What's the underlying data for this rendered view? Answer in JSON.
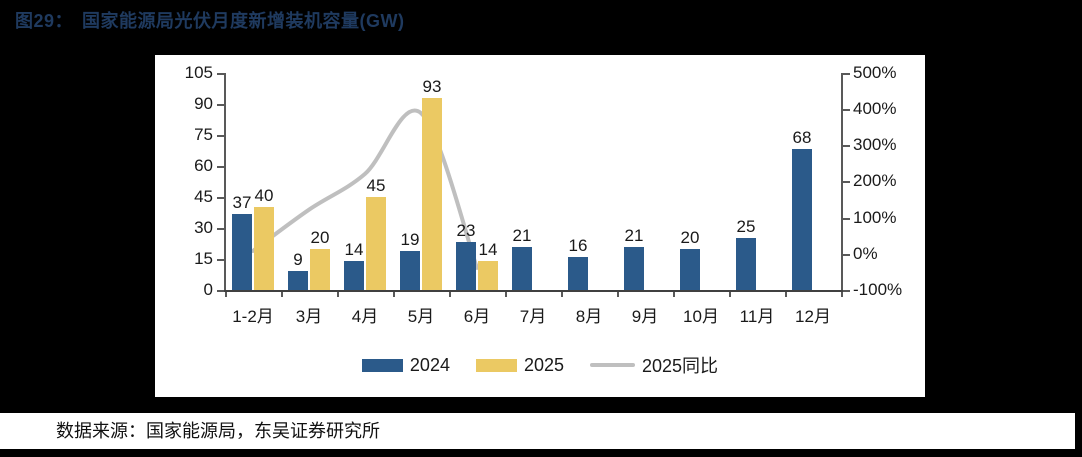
{
  "figure": {
    "title_prefix": "图29：",
    "title_text": "国家能源局光伏月度新增装机容量(GW)",
    "source": "数据来源：国家能源局，东吴证券研究所"
  },
  "colors": {
    "background": "#000000",
    "panel": "#ffffff",
    "title": "#1F3A5F",
    "bar_2024": "#2B5A8A",
    "bar_2025": "#EBC963",
    "yoy_line": "#BFBFBF",
    "axis": "#595959",
    "text": "#1a1a1a"
  },
  "chart_data": {
    "type": "bar",
    "subtype": "grouped bars with smoothed YoY line on secondary axis",
    "title": "国家能源局光伏月度新增装机容量(GW)",
    "categories": [
      "1-2月",
      "3月",
      "4月",
      "5月",
      "6月",
      "7月",
      "8月",
      "9月",
      "10月",
      "11月",
      "12月"
    ],
    "series": [
      {
        "name": "2024",
        "type": "bar",
        "color": "#2B5A8A",
        "values": [
          37,
          9,
          14,
          19,
          23,
          21,
          16,
          21,
          20,
          25,
          68
        ]
      },
      {
        "name": "2025",
        "type": "bar",
        "color": "#EBC963",
        "values": [
          40,
          20,
          45,
          93,
          14,
          null,
          null,
          null,
          null,
          null,
          null
        ]
      },
      {
        "name": "2025同比",
        "type": "line",
        "axis": "right",
        "color": "#BFBFBF",
        "values_pct": [
          8,
          122,
          221,
          389,
          -39,
          null,
          null,
          null,
          null,
          null,
          null
        ]
      }
    ],
    "left_axis": {
      "label": "GW",
      "min": 0,
      "max": 105,
      "ticks": [
        105,
        90,
        75,
        60,
        45,
        30,
        15,
        0
      ]
    },
    "right_axis": {
      "min": -100,
      "max": 500,
      "ticks": [
        {
          "value": 500,
          "label": "500%"
        },
        {
          "value": 400,
          "label": "400%"
        },
        {
          "value": 300,
          "label": "300%"
        },
        {
          "value": 200,
          "label": "200%"
        },
        {
          "value": 100,
          "label": "100%"
        },
        {
          "value": 0,
          "label": "0%"
        },
        {
          "value": -100,
          "label": "-100%"
        }
      ]
    },
    "grid": false,
    "legend_position": "bottom"
  }
}
